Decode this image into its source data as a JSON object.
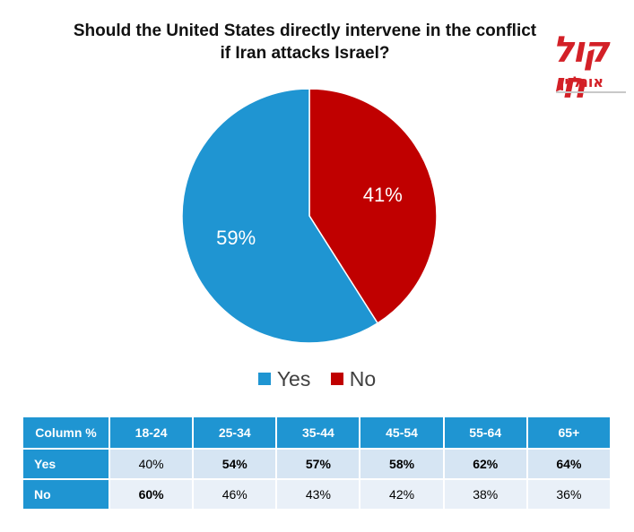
{
  "chart_data": {
    "type": "pie",
    "title_lines": [
      "Should the United States directly intervene in the conflict",
      "if Iran attacks Israel?"
    ],
    "slices": [
      {
        "label": "Yes",
        "value": 59,
        "display": "59%",
        "color": "#1f95d2"
      },
      {
        "label": "No",
        "value": 41,
        "display": "41%",
        "color": "#c00000"
      }
    ],
    "legend": [
      "Yes",
      "No"
    ],
    "legend_position": "bottom"
  },
  "logo": {
    "mark": "קול חי",
    "sub": "אונליין"
  },
  "table": {
    "corner": "Column %",
    "columns": [
      "18-24",
      "25-34",
      "35-44",
      "45-54",
      "55-64",
      "65+"
    ],
    "rows": [
      {
        "label": "Yes",
        "cells": [
          "40%",
          "54%",
          "57%",
          "58%",
          "62%",
          "64%"
        ],
        "bold": [
          false,
          true,
          true,
          true,
          true,
          true
        ]
      },
      {
        "label": "No",
        "cells": [
          "60%",
          "46%",
          "43%",
          "42%",
          "38%",
          "36%"
        ],
        "bold": [
          true,
          false,
          false,
          false,
          false,
          false
        ]
      }
    ]
  },
  "colors": {
    "header_blue": "#1f95d2",
    "yes": "#1f95d2",
    "no": "#c00000"
  }
}
